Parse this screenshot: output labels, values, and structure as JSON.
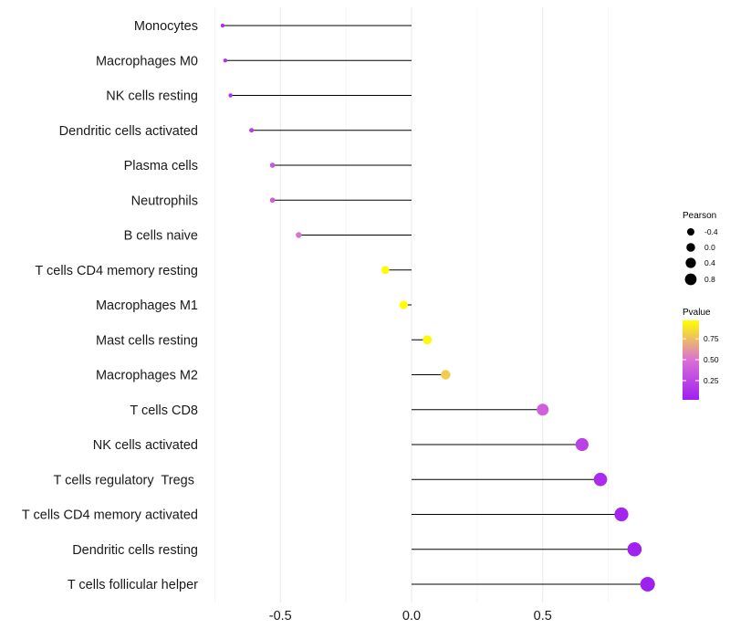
{
  "chart_data": {
    "type": "lollipop",
    "xlim": [
      -0.76,
      0.92
    ],
    "x_ticks": [
      -0.5,
      0.0,
      0.5
    ],
    "x_tick_labels": [
      "-0.5",
      "0.0",
      "0.5"
    ],
    "x_minor_gridlines": [
      -0.75,
      -0.25,
      0.25,
      0.75
    ],
    "grid": true,
    "xlabel": "",
    "ylabel": "",
    "categories": [
      "Monocytes",
      "Macrophages M0",
      "NK cells resting",
      "Dendritic cells activated",
      "Plasma cells",
      "Neutrophils",
      "B cells naive",
      "T cells CD4 memory resting",
      "Macrophages M1",
      "Mast cells resting",
      "Macrophages M2",
      "T cells CD8",
      "NK cells activated",
      "T cells regulatory  Tregs ",
      "T cells CD4 memory activated",
      "Dendritic cells resting",
      "T cells follicular helper"
    ],
    "pearson": [
      -0.72,
      -0.71,
      -0.69,
      -0.61,
      -0.53,
      -0.53,
      -0.43,
      -0.1,
      -0.03,
      0.06,
      0.13,
      0.5,
      0.65,
      0.72,
      0.8,
      0.85,
      0.9
    ],
    "pvalue": [
      0.1,
      0.12,
      0.14,
      0.2,
      0.35,
      0.38,
      0.5,
      0.95,
      0.97,
      0.95,
      0.8,
      0.4,
      0.22,
      0.1,
      0.05,
      0.03,
      0.02
    ],
    "legend": {
      "position": "right",
      "size_title": "Pearson",
      "size_values": [
        -0.4,
        0.0,
        0.4,
        0.8
      ],
      "size_labels": [
        "-0.4",
        "0.0",
        "0.4",
        "0.8"
      ],
      "color_title": "Pvalue",
      "color_ticks": [
        0.25,
        0.5,
        0.75
      ],
      "color_tick_labels": [
        "0.25",
        "0.50",
        "0.75"
      ],
      "color_range": [
        0.02,
        0.97
      ],
      "color_low": "#a020f0",
      "color_mid": "#da70d6",
      "color_high": "#ffff00"
    }
  }
}
